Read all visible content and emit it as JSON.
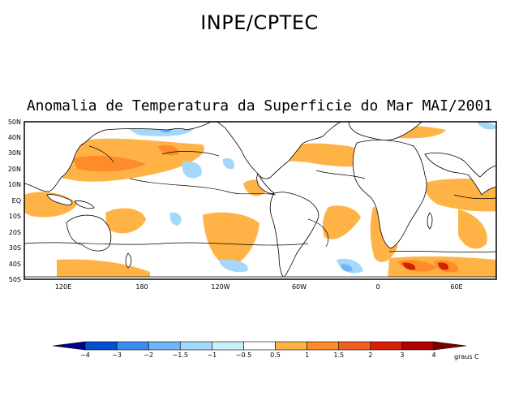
{
  "header": {
    "title": "INPE/CPTEC",
    "subtitle": "Anomalia de Temperatura da Superficie do Mar MAI/2001"
  },
  "map": {
    "lat_labels": [
      "50N",
      "40N",
      "30N",
      "20N",
      "10N",
      "EQ",
      "10S",
      "20S",
      "30S",
      "40S",
      "50S"
    ],
    "lon_labels": [
      "120E",
      "180",
      "120W",
      "60W",
      "0",
      "60E"
    ]
  },
  "legend": {
    "unit": "graus C",
    "ticks": [
      "-4",
      "-3",
      "-2",
      "-1.5",
      "-1",
      "-0.5",
      "0.5",
      "1",
      "1.5",
      "2",
      "3",
      "4"
    ],
    "colors": [
      "#00008b",
      "#0050d0",
      "#3a8ef0",
      "#6fb4f8",
      "#a4d8fb",
      "#c8f0fa",
      "#ffffff",
      "#ffb347",
      "#ff8c2a",
      "#f06020",
      "#d62000",
      "#b00000",
      "#7a0000"
    ]
  }
}
